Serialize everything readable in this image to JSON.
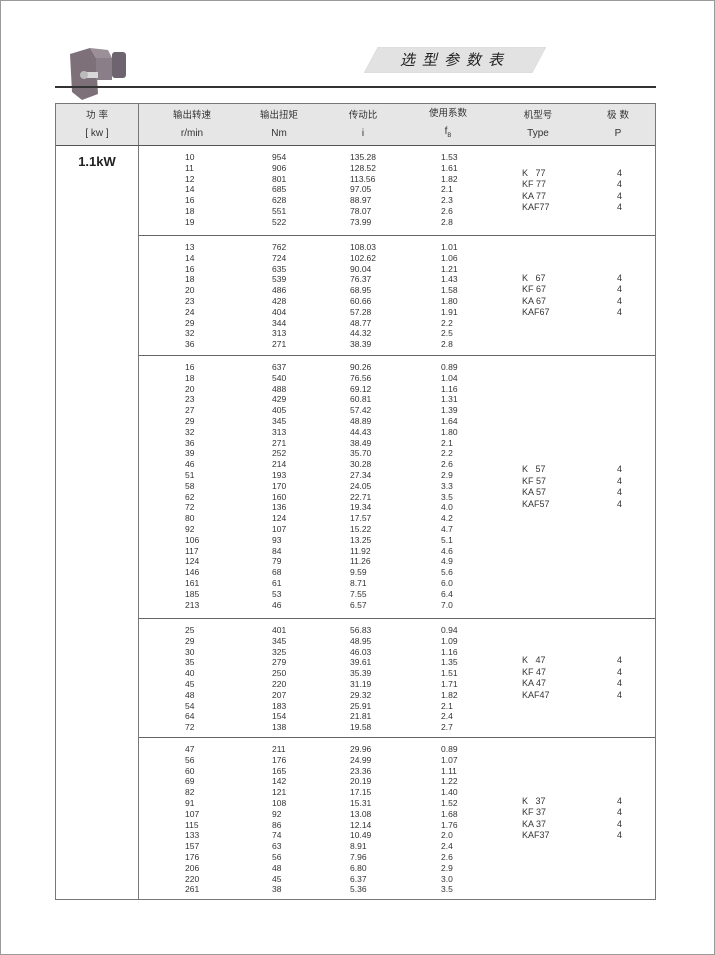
{
  "page": {
    "title": "选型参数表"
  },
  "header": {
    "power": {
      "zh": "功 率",
      "unit": "[ kw ]"
    },
    "columns": [
      {
        "zh": "输出转速",
        "unit": "r/min"
      },
      {
        "zh": "输出扭矩",
        "unit": "Nm"
      },
      {
        "zh": "传动比",
        "unit": "i"
      },
      {
        "zh": "使用系数",
        "unit": "fB"
      },
      {
        "zh": "机型号",
        "unit": "Type"
      },
      {
        "zh": "极  数",
        "unit": "P"
      }
    ]
  },
  "power": "1.1kW",
  "sections": [
    {
      "rows": [
        [
          "10",
          "954",
          "135.28",
          "1.53"
        ],
        [
          "11",
          "906",
          "128.52",
          "1.61"
        ],
        [
          "12",
          "801",
          "113.56",
          "1.82"
        ],
        [
          "14",
          "685",
          "97.05",
          "2.1"
        ],
        [
          "16",
          "628",
          "88.97",
          "2.3"
        ],
        [
          "18",
          "551",
          "78.07",
          "2.6"
        ],
        [
          "19",
          "522",
          "73.99",
          "2.8"
        ]
      ],
      "types": [
        [
          "K   77",
          "4"
        ],
        [
          "KF 77",
          "4"
        ],
        [
          "KA 77",
          "4"
        ],
        [
          "KAF77",
          "4"
        ]
      ]
    },
    {
      "rows": [
        [
          "13",
          "762",
          "108.03",
          "1.01"
        ],
        [
          "14",
          "724",
          "102.62",
          "1.06"
        ],
        [
          "16",
          "635",
          "90.04",
          "1.21"
        ],
        [
          "18",
          "539",
          "76.37",
          "1.43"
        ],
        [
          "20",
          "486",
          "68.95",
          "1.58"
        ],
        [
          "23",
          "428",
          "60.66",
          "1.80"
        ],
        [
          "24",
          "404",
          "57.28",
          "1.91"
        ],
        [
          "29",
          "344",
          "48.77",
          "2.2"
        ],
        [
          "32",
          "313",
          "44.32",
          "2.5"
        ],
        [
          "36",
          "271",
          "38.39",
          "2.8"
        ]
      ],
      "types": [
        [
          "K   67",
          "4"
        ],
        [
          "KF 67",
          "4"
        ],
        [
          "KA 67",
          "4"
        ],
        [
          "KAF67",
          "4"
        ]
      ]
    },
    {
      "rows": [
        [
          "16",
          "637",
          "90.26",
          "0.89"
        ],
        [
          "18",
          "540",
          "76.56",
          "1.04"
        ],
        [
          "20",
          "488",
          "69.12",
          "1.16"
        ],
        [
          "23",
          "429",
          "60.81",
          "1.31"
        ],
        [
          "27",
          "405",
          "57.42",
          "1.39"
        ],
        [
          "29",
          "345",
          "48.89",
          "1.64"
        ],
        [
          "32",
          "313",
          "44.43",
          "1.80"
        ],
        [
          "36",
          "271",
          "38.49",
          "2.1"
        ],
        [
          "39",
          "252",
          "35.70",
          "2.2"
        ],
        [
          "46",
          "214",
          "30.28",
          "2.6"
        ],
        [
          "51",
          "193",
          "27.34",
          "2.9"
        ],
        [
          "58",
          "170",
          "24.05",
          "3.3"
        ],
        [
          "62",
          "160",
          "22.71",
          "3.5"
        ],
        [
          "72",
          "136",
          "19.34",
          "4.0"
        ],
        [
          "80",
          "124",
          "17.57",
          "4.2"
        ],
        [
          "92",
          "107",
          "15.22",
          "4.7"
        ],
        [
          "106",
          "93",
          "13.25",
          "5.1"
        ],
        [
          "117",
          "84",
          "11.92",
          "4.6"
        ],
        [
          "124",
          "79",
          "11.26",
          "4.9"
        ],
        [
          "146",
          "68",
          "9.59",
          "5.6"
        ],
        [
          "161",
          "61",
          "8.71",
          "6.0"
        ],
        [
          "185",
          "53",
          "7.55",
          "6.4"
        ],
        [
          "213",
          "46",
          "6.57",
          "7.0"
        ]
      ],
      "types": [
        [
          "K   57",
          "4"
        ],
        [
          "KF 57",
          "4"
        ],
        [
          "KA 57",
          "4"
        ],
        [
          "KAF57",
          "4"
        ]
      ]
    },
    {
      "rows": [
        [
          "25",
          "401",
          "56.83",
          "0.94"
        ],
        [
          "29",
          "345",
          "48.95",
          "1.09"
        ],
        [
          "30",
          "325",
          "46.03",
          "1.16"
        ],
        [
          "35",
          "279",
          "39.61",
          "1.35"
        ],
        [
          "40",
          "250",
          "35.39",
          "1.51"
        ],
        [
          "45",
          "220",
          "31.19",
          "1.71"
        ],
        [
          "48",
          "207",
          "29.32",
          "1.82"
        ],
        [
          "54",
          "183",
          "25.91",
          "2.1"
        ],
        [
          "64",
          "154",
          "21.81",
          "2.4"
        ],
        [
          "72",
          "138",
          "19.58",
          "2.7"
        ]
      ],
      "types": [
        [
          "K   47",
          "4"
        ],
        [
          "KF 47",
          "4"
        ],
        [
          "KA 47",
          "4"
        ],
        [
          "KAF47",
          "4"
        ]
      ]
    },
    {
      "rows": [
        [
          "47",
          "211",
          "29.96",
          "0.89"
        ],
        [
          "56",
          "176",
          "24.99",
          "1.07"
        ],
        [
          "60",
          "165",
          "23.36",
          "1.11"
        ],
        [
          "69",
          "142",
          "20.19",
          "1.22"
        ],
        [
          "82",
          "121",
          "17.15",
          "1.40"
        ],
        [
          "91",
          "108",
          "15.31",
          "1.52"
        ],
        [
          "107",
          "92",
          "13.08",
          "1.68"
        ],
        [
          "115",
          "86",
          "12.14",
          "1.76"
        ],
        [
          "133",
          "74",
          "10.49",
          "2.0"
        ],
        [
          "157",
          "63",
          "8.91",
          "2.4"
        ],
        [
          "176",
          "56",
          "7.96",
          "2.6"
        ],
        [
          "206",
          "48",
          "6.80",
          "2.9"
        ],
        [
          "220",
          "45",
          "6.37",
          "3.0"
        ],
        [
          "261",
          "38",
          "5.36",
          "3.5"
        ]
      ],
      "types": [
        [
          "K   37",
          "4"
        ],
        [
          "KF 37",
          "4"
        ],
        [
          "KA 37",
          "4"
        ],
        [
          "KAF37",
          "4"
        ]
      ]
    }
  ],
  "colors": {
    "header_bg": "#e6e6e6",
    "banner_bg": "#e2e2e2",
    "rule": "#333333"
  }
}
